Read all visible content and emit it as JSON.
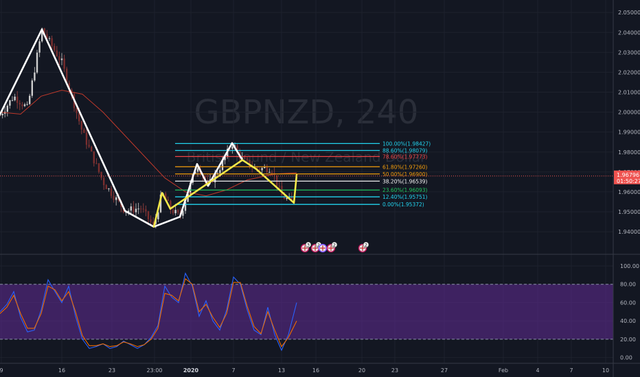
{
  "chart_data": [
    {
      "type": "candlestick",
      "watermark": {
        "symbol": "GBPNZD, 240",
        "name": "British Pound / New Zealand Dollar"
      },
      "ylim": [
        1.9335,
        2.0535
      ],
      "y_ticks": [
        "2.05000",
        "2.04000",
        "2.03000",
        "2.02000",
        "2.01000",
        "2.00000",
        "1.99000",
        "1.98000",
        "1.97000",
        "1.96000",
        "1.95000",
        "1.94000"
      ],
      "x_ticks": [
        "9",
        "16",
        "23",
        "23:00",
        "2020",
        "7",
        "13",
        "16",
        "20",
        "23",
        "27",
        "Feb",
        "4",
        "7",
        "10"
      ],
      "last_price": {
        "value": 1.96796,
        "label": "1.96796",
        "countdown": "01:50:27",
        "color": "#ef5350"
      },
      "zigzag": {
        "white": [
          [
            -2,
            1.9975
          ],
          [
            61,
            2.0415
          ],
          [
            182,
            1.9505
          ],
          [
            224,
            1.9425
          ],
          [
            262,
            1.9475
          ],
          [
            287,
            1.974
          ],
          [
            303,
            1.963
          ],
          [
            338,
            1.9845
          ],
          [
            353,
            1.976
          ]
        ],
        "yellow": [
          [
            224,
            1.9425
          ],
          [
            236,
            1.9595
          ],
          [
            248,
            1.9515
          ],
          [
            353,
            1.976
          ],
          [
            373,
            1.9715
          ],
          [
            428,
            1.9545
          ],
          [
            432,
            1.9685
          ]
        ]
      },
      "fibonacci": [
        {
          "label": "100.00%(1.98427)",
          "value": 1.98427,
          "color": "#22d3ee"
        },
        {
          "label": "88.60%(1.98079)",
          "value": 1.98079,
          "color": "#22d3ee"
        },
        {
          "label": "78.60%(1.97773)",
          "value": 1.97773,
          "color": "#ef4444"
        },
        {
          "label": "61.80%(1.97260)",
          "value": 1.9726,
          "color": "#f59e0b"
        },
        {
          "label": "50.00%(1.96900)",
          "value": 1.969,
          "color": "#f59e0b"
        },
        {
          "label": "38.20%(1.96539)",
          "value": 1.96539,
          "color": "#f5f5f5"
        },
        {
          "label": "23.60%(1.96093)",
          "value": 1.96093,
          "color": "#22c55e"
        },
        {
          "label": "12.40%(1.95751)",
          "value": 1.95751,
          "color": "#22d3ee"
        },
        {
          "label": "0.00%(1.95372)",
          "value": 1.95372,
          "color": "#22d3ee"
        }
      ],
      "events": [
        {
          "flag": "uk",
          "label": "3"
        },
        {
          "flag": "uk",
          "label": "2"
        },
        {
          "flag": "nz",
          "label": ""
        },
        {
          "flag": "uk",
          "label": "2"
        },
        {
          "flag": "uk",
          "label": "2"
        }
      ],
      "moving_average_color": "#c0392b",
      "candle_colors": {
        "up": "#a8a8a8",
        "down": "#8a3b3b",
        "up_fill": "#cfcfcf",
        "down_fill": "#7a2e2e"
      }
    },
    {
      "type": "line",
      "indicator": "stochastic",
      "ylim": [
        -4,
        106
      ],
      "y_ticks": [
        "100.00",
        "80.00",
        "60.00",
        "40.00",
        "20.00",
        "0.00"
      ],
      "band": [
        20,
        80
      ],
      "band_color": "#5b2a8c",
      "series": [
        {
          "color": "#2962ff",
          "x": [
            0,
            10,
            20,
            30,
            40,
            50,
            60,
            70,
            80,
            90,
            100,
            110,
            120,
            130,
            140,
            150,
            160,
            170,
            180,
            190,
            200,
            210,
            220,
            230,
            240,
            250,
            260,
            270,
            280,
            290,
            300,
            310,
            320,
            330,
            340,
            350,
            360,
            370,
            380,
            390,
            400,
            410,
            420,
            432
          ],
          "values": [
            50,
            58,
            72,
            44,
            28,
            30,
            52,
            85,
            72,
            60,
            78,
            45,
            20,
            10,
            12,
            15,
            10,
            12,
            18,
            14,
            10,
            14,
            22,
            35,
            78,
            66,
            60,
            92,
            78,
            45,
            62,
            40,
            30,
            52,
            88,
            80,
            52,
            30,
            25,
            55,
            25,
            8,
            25,
            60
          ]
        },
        {
          "color": "#ef6c00",
          "x": [
            0,
            10,
            20,
            30,
            40,
            50,
            60,
            70,
            80,
            90,
            100,
            110,
            120,
            130,
            140,
            150,
            160,
            170,
            180,
            190,
            200,
            210,
            220,
            230,
            240,
            250,
            260,
            270,
            280,
            290,
            300,
            310,
            320,
            330,
            340,
            350,
            360,
            370,
            380,
            390,
            400,
            410,
            420,
            432
          ],
          "values": [
            48,
            55,
            68,
            48,
            32,
            32,
            48,
            78,
            74,
            62,
            72,
            50,
            24,
            13,
            13,
            15,
            12,
            13,
            17,
            15,
            12,
            14,
            20,
            32,
            70,
            68,
            62,
            86,
            80,
            50,
            58,
            44,
            33,
            48,
            82,
            82,
            56,
            34,
            26,
            50,
            30,
            12,
            22,
            40
          ]
        }
      ],
      "x_ticks": [
        "9",
        "16",
        "23",
        "23:00",
        "2020",
        "7",
        "13",
        "16",
        "20",
        "23",
        "27",
        "Feb",
        "4",
        "7",
        "10"
      ]
    }
  ]
}
